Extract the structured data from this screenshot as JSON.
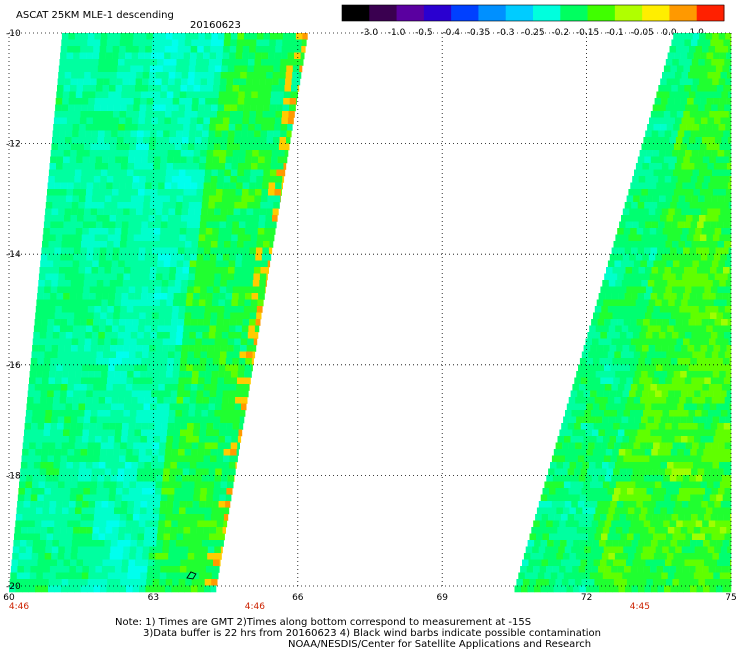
{
  "header": {
    "product": "ASCAT 25KM MLE-1 descending",
    "date": "20160623"
  },
  "colorbar": {
    "labels": [
      "-3.0",
      "-1.0",
      "-0.5",
      "-0.4",
      "-0.35",
      "-0.3",
      "-0.25",
      "-0.2",
      "-0.15",
      "-0.1",
      "-0.05",
      "0.0",
      "1.0"
    ],
    "colors": [
      "#000000",
      "#3a0050",
      "#5a00a0",
      "#2a00d0",
      "#0040ff",
      "#0090ff",
      "#00ccff",
      "#00ffdd",
      "#00ff60",
      "#40ff00",
      "#b0ff00",
      "#ffee00",
      "#ff9900",
      "#ff2000"
    ]
  },
  "map": {
    "lon_range": [
      60,
      75
    ],
    "lat_range": [
      -20,
      -10
    ],
    "lon_ticks": [
      "60",
      "63",
      "66",
      "69",
      "72",
      "75"
    ],
    "lat_ticks": [
      "-10",
      "-12",
      "-14",
      "-16",
      "-18",
      "-20"
    ],
    "grid": "dotted",
    "pass_times": [
      {
        "label": "4:46",
        "lon": 60
      },
      {
        "label": "4:46",
        "lon": 64.9
      },
      {
        "label": "4:45",
        "lon": 72.9
      }
    ],
    "swaths": [
      {
        "name": "west-swath",
        "lon_top_left": 61.1,
        "lon_top_right": 66.2,
        "lon_bottom_left": 60,
        "lon_bottom_right": 64.3
      },
      {
        "name": "east-swath",
        "lon_top_left": 73.8,
        "lon_top_right": 75,
        "lon_bottom_left": 70.5,
        "lon_bottom_right": 75
      }
    ]
  },
  "notes": {
    "line1": "Note: 1) Times are GMT 2)Times along bottom correspond to measurement at -15S",
    "line2": "3)Data buffer is 22 hrs from 20160623 4) Black wind barbs indicate possible contamination",
    "line3": "NOAA/NESDIS/Center for Satellite Applications and Research"
  }
}
